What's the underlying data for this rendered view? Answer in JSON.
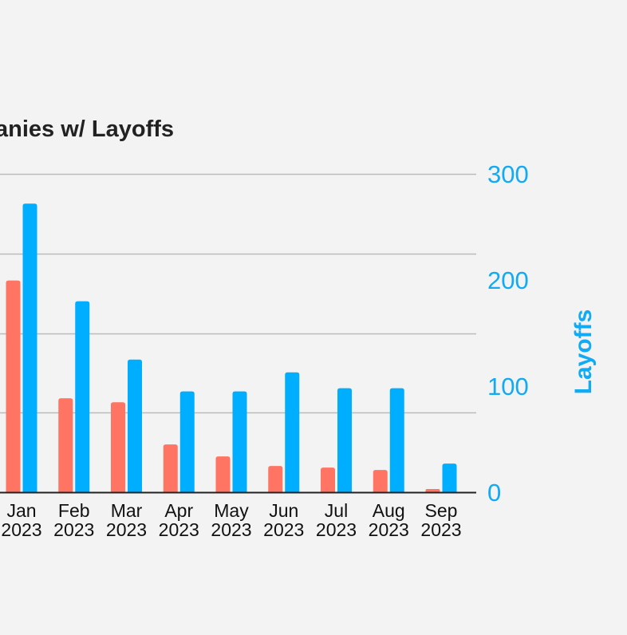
{
  "colors": {
    "background": "#f3f3f3",
    "series_a": "#ff7462",
    "series_b": "#00aeff",
    "grid": "#bbbbbb",
    "axis": "#222222",
    "title": "#222222",
    "right_axis_text": "#10aaf5"
  },
  "chart_data": {
    "type": "bar",
    "title": "anies w/ Layoffs",
    "categories": [
      [
        "Jan",
        "2023"
      ],
      [
        "Feb",
        "2023"
      ],
      [
        "Mar",
        "2023"
      ],
      [
        "Apr",
        "2023"
      ],
      [
        "May",
        "2023"
      ],
      [
        "Jun",
        "2023"
      ],
      [
        "Jul",
        "2023"
      ],
      [
        "Aug",
        "2023"
      ],
      [
        "Sep",
        "2023"
      ]
    ],
    "series": [
      {
        "values": [
          266,
          118,
          113,
          60,
          45,
          33,
          31,
          28,
          4
        ]
      },
      {
        "name": "Layoffs",
        "values": [
          272,
          180,
          125,
          95,
          95,
          113,
          98,
          98,
          27
        ]
      }
    ],
    "right_axis": {
      "label": "Layoffs",
      "ticks": [
        0,
        100,
        200,
        300
      ]
    },
    "grid": true
  }
}
